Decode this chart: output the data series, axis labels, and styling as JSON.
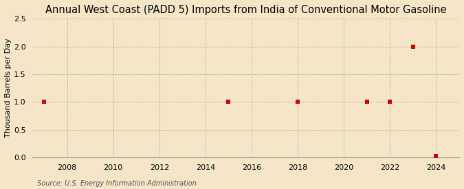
{
  "title": "Annual West Coast (PADD 5) Imports from India of Conventional Motor Gasoline",
  "ylabel": "Thousand Barrels per Day",
  "source": "Source: U.S. Energy Information Administration",
  "background_color": "#f5e6c8",
  "plot_background_color": "#f5e6c8",
  "data_x": [
    2007,
    2015,
    2018,
    2021,
    2022,
    2023,
    2024
  ],
  "data_y": [
    1.0,
    1.0,
    1.0,
    1.0,
    1.0,
    2.0,
    0.02
  ],
  "marker_color": "#cc0000",
  "marker_size": 18,
  "xlim": [
    2006.5,
    2025.0
  ],
  "ylim": [
    0,
    2.5
  ],
  "xticks": [
    2008,
    2010,
    2012,
    2014,
    2016,
    2018,
    2020,
    2022,
    2024
  ],
  "yticks": [
    0.0,
    0.5,
    1.0,
    1.5,
    2.0,
    2.5
  ],
  "grid_color": "#aaaaaa",
  "grid_style": "--",
  "title_fontsize": 10.5,
  "label_fontsize": 8,
  "tick_fontsize": 8,
  "source_fontsize": 7
}
